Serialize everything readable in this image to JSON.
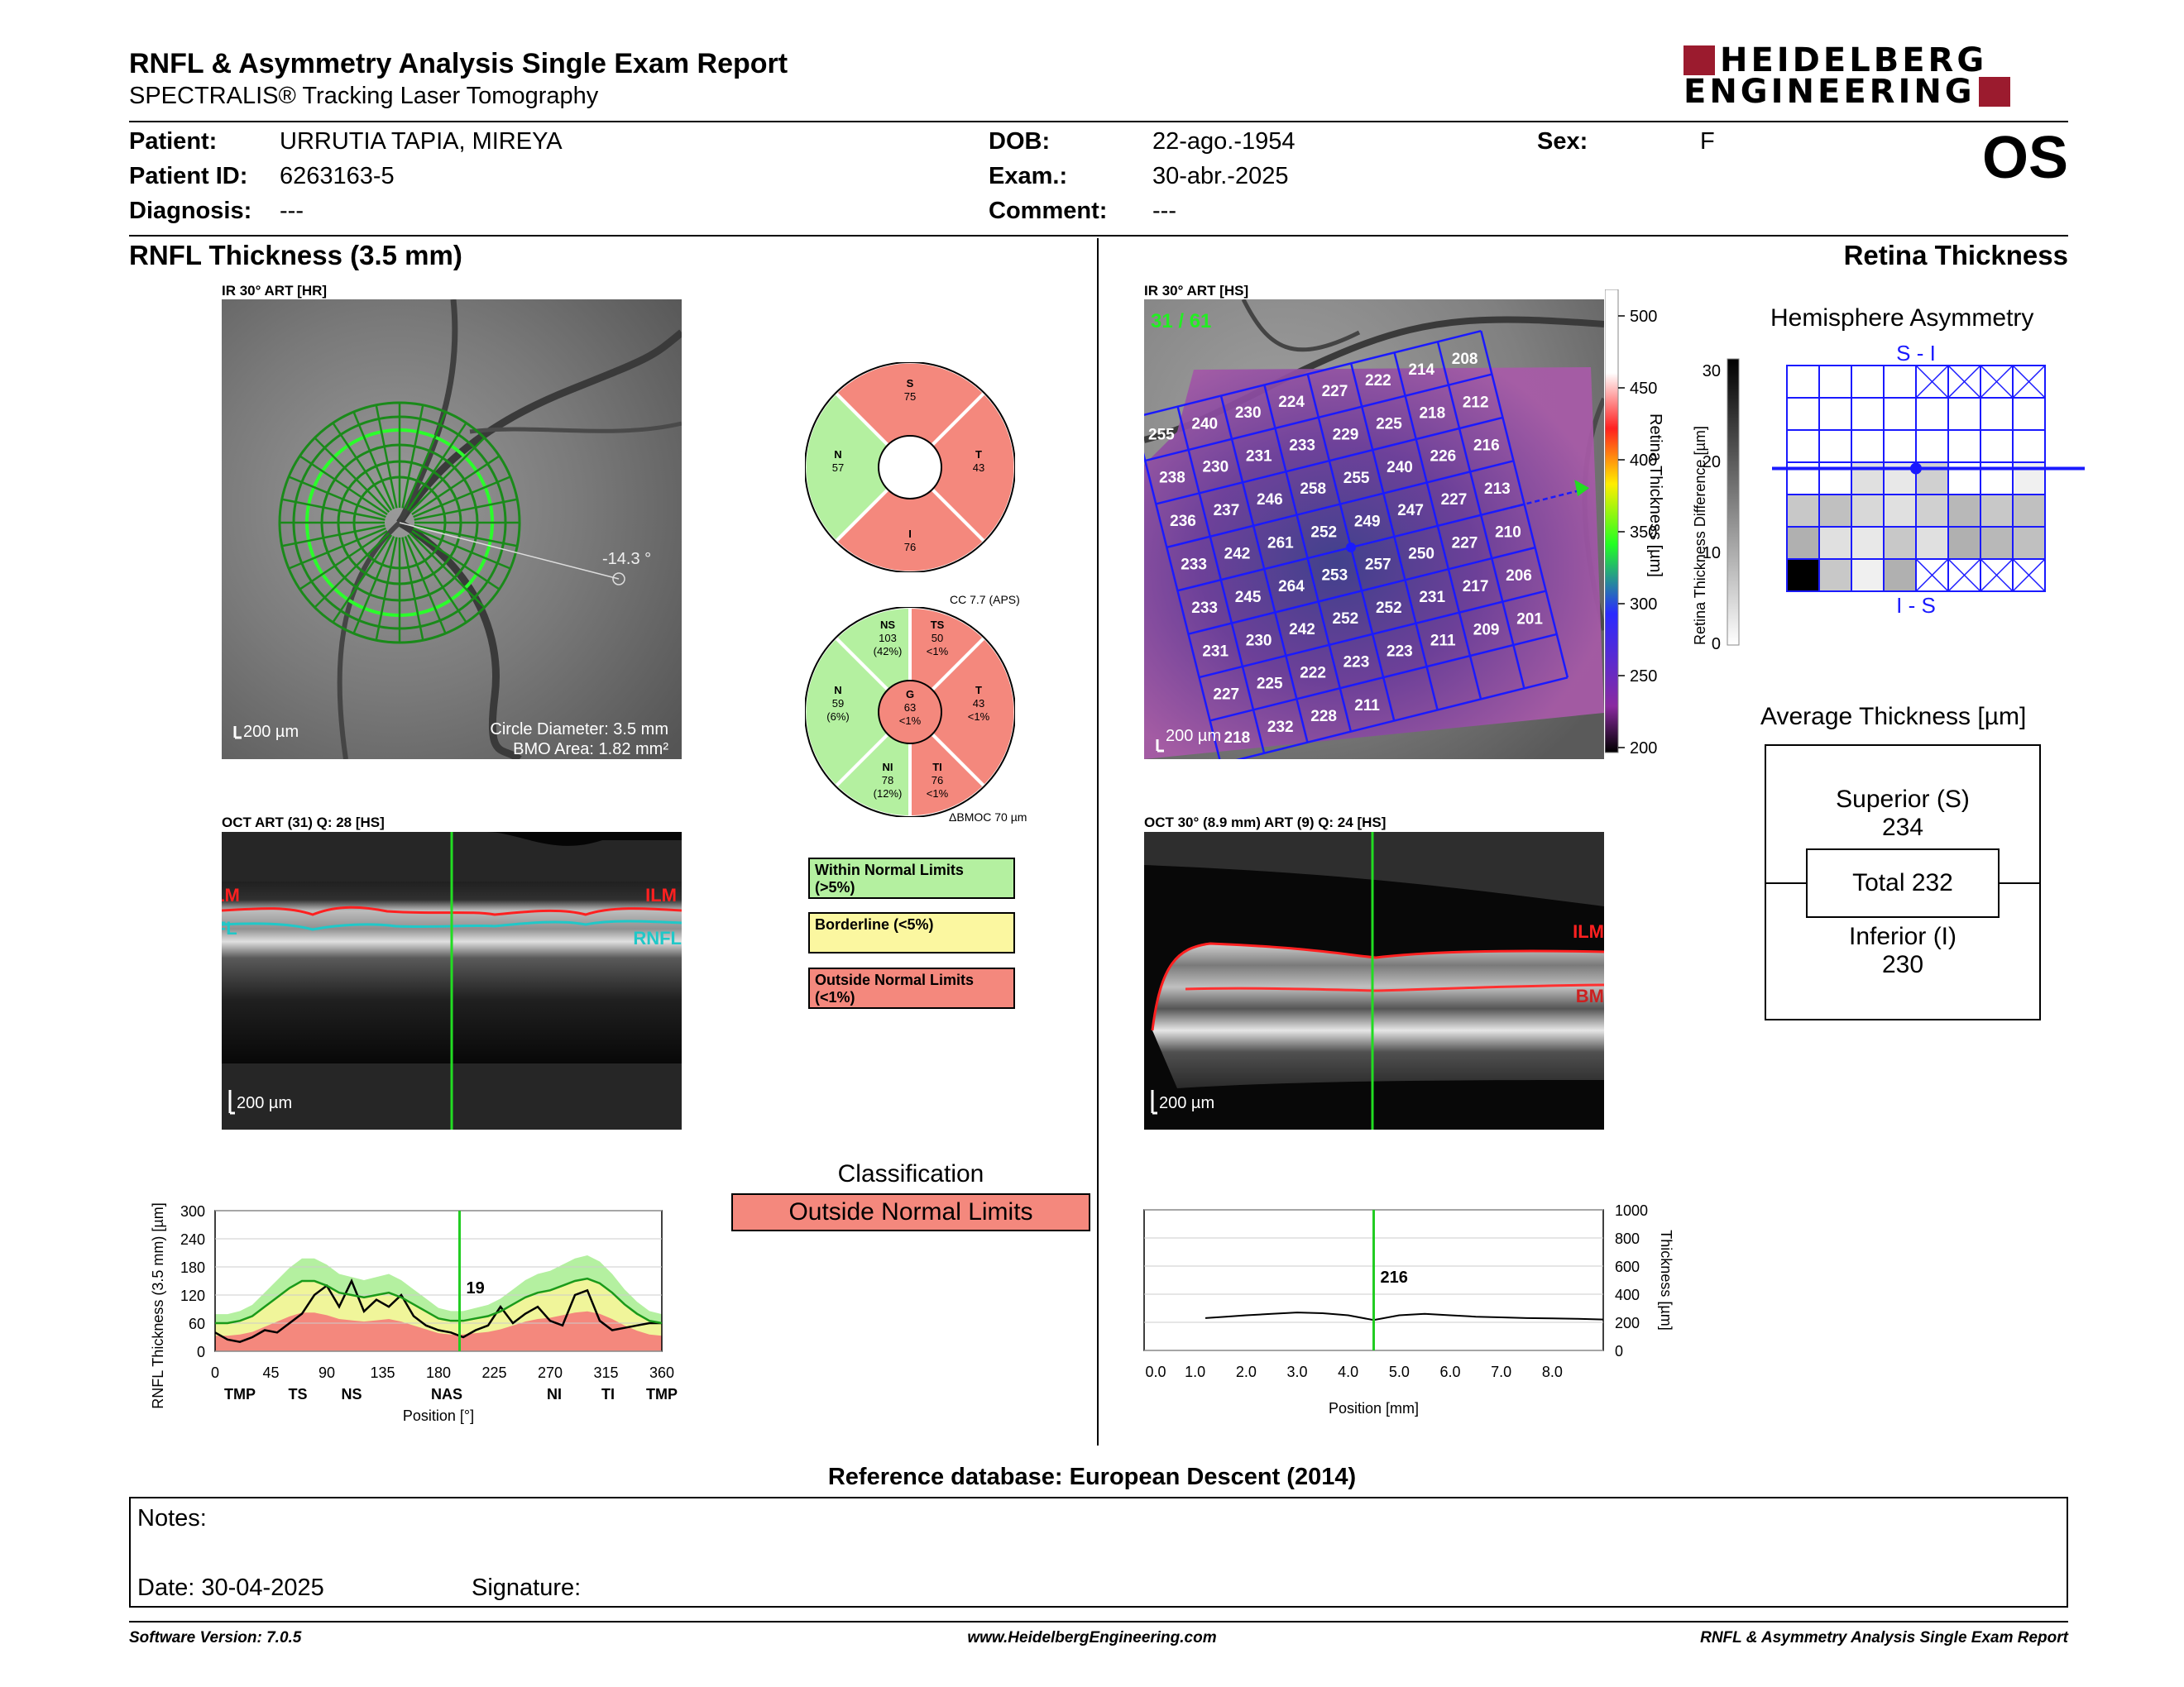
{
  "report": {
    "title": "RNFL & Asymmetry Analysis Single Exam Report",
    "subtitle": "SPECTRALIS® Tracking Laser Tomography",
    "logo_top": "HEIDELBERG",
    "logo_bottom": "ENGINEERING",
    "eye": "OS"
  },
  "patient": {
    "patient_label": "Patient:",
    "patient_value": "URRUTIA TAPIA, MIREYA",
    "id_label": "Patient ID:",
    "id_value": "6263163-5",
    "diag_label": "Diagnosis:",
    "diag_value": "---",
    "dob_label": "DOB:",
    "dob_value": "22-ago.-1954",
    "exam_label": "Exam.:",
    "exam_value": "30-abr.-2025",
    "comment_label": "Comment:",
    "comment_value": "---",
    "sex_label": "Sex:",
    "sex_value": "F"
  },
  "left": {
    "section_title": "RNFL Thickness (3.5 mm)",
    "ir_label": "IR 30° ART [HR]",
    "ir_scale": "200 µm",
    "ir_angle": "-14.3 °",
    "circle_diameter": "Circle Diameter: 3.5 mm",
    "bmo_area": "BMO Area: 1.82 mm²",
    "oct_label": "OCT ART (31) Q: 28 [HS]",
    "oct_scale": "200 µm",
    "oct_ilm_left": "ILM",
    "oct_ilm": "ILM",
    "oct_rnfl": "RNFL",
    "oct_rnfl_left": "RNFL"
  },
  "sectors_6": {
    "S": {
      "label": "S",
      "value": "75"
    },
    "N": {
      "label": "N",
      "value": "57"
    },
    "T": {
      "label": "T",
      "value": "43"
    },
    "I": {
      "label": "I",
      "value": "76"
    }
  },
  "sectors_g": {
    "cc": "CC 7.7 (APS)",
    "NS": {
      "label": "NS",
      "value": "103",
      "pct": "(42%)"
    },
    "TS": {
      "label": "TS",
      "value": "50",
      "pct": "<1%"
    },
    "N": {
      "label": "N",
      "value": "59",
      "pct": "(6%)"
    },
    "G": {
      "label": "G",
      "value": "63",
      "pct": "<1%"
    },
    "T": {
      "label": "T",
      "value": "43",
      "pct": "<1%"
    },
    "NI": {
      "label": "NI",
      "value": "78",
      "pct": "(12%)"
    },
    "TI": {
      "label": "TI",
      "value": "76",
      "pct": "<1%"
    },
    "bmo_delta": "ΔBMOC 70 µm"
  },
  "legend": {
    "within": "Within Normal Limits (>5%)",
    "within_l1": "Within Normal Limits",
    "within_l2": "(>5%)",
    "border": "Borderline (<5%)",
    "outside_l1": "Outside Normal Limits",
    "outside_l2": "(<1%)"
  },
  "classification": {
    "title": "Classification",
    "value": "Outside Normal Limits"
  },
  "rnfl_chart": {
    "ylabel": "RNFL Thickness (3.5 mm) [µm]",
    "xlabel": "Position [°]",
    "cursor_value": "19",
    "sectors": [
      "TMP",
      "TS",
      "NS",
      "NAS",
      "NI",
      "TI",
      "TMP"
    ]
  },
  "right": {
    "section_title": "Retina Thickness",
    "ir_label": "IR 30° ART [HS]",
    "counter": "31 / 61",
    "ir_scale": "200 µm",
    "colorbar_title": "Retina Thickness [µm]",
    "oct_label": "OCT 30° (8.9 mm) ART (9) Q: 24 [HS]",
    "oct_scale": "200 µm",
    "oct_ilm": "ILM",
    "oct_bm": "BM"
  },
  "grid_values": [
    [
      "255",
      "240",
      "230",
      "224",
      "227",
      "222",
      "214",
      "208"
    ],
    [
      "238",
      "230",
      "231",
      "233",
      "229",
      "225",
      "218",
      "212"
    ],
    [
      "236",
      "237",
      "246",
      "258",
      "255",
      "240",
      "226",
      "216"
    ],
    [
      "233",
      "242",
      "261",
      "252",
      "249",
      "247",
      "227",
      "213"
    ],
    [
      "233",
      "245",
      "264",
      "253",
      "257",
      "250",
      "227",
      "210"
    ],
    [
      "231",
      "230",
      "242",
      "252",
      "252",
      "231",
      "217",
      "206"
    ],
    [
      "227",
      "225",
      "222",
      "223",
      "223",
      "211",
      "209",
      "201"
    ],
    [
      "218",
      "232",
      "228",
      "211"
    ]
  ],
  "hemisphere": {
    "title": "Hemisphere Asymmetry",
    "top_label": "S - I",
    "bottom_label": "I - S",
    "ylabel": "Retina Thickness Difference [µm]"
  },
  "average": {
    "title": "Average Thickness [µm]",
    "superior_label": "Superior (S)",
    "superior_value": "234",
    "total": "Total 232",
    "inferior_label": "Inferior (I)",
    "inferior_value": "230"
  },
  "retina_chart": {
    "ylabel": "Thickness [µm]",
    "xlabel": "Position [mm]",
    "cursor_value": "216"
  },
  "footer": {
    "reference": "Reference database: European Descent (2014)",
    "notes_label": "Notes:",
    "date_label": "Date: 30-04-2025",
    "signature_label": "Signature:",
    "software": "Software Version: 7.0.5",
    "website": "www.HeidelbergEngineering.com",
    "report_name": "RNFL & Asymmetry Analysis Single Exam Report"
  },
  "chart_data": [
    {
      "type": "line",
      "title": "",
      "xlabel": "Position [°]",
      "ylabel": "RNFL Thickness (3.5 mm) [µm]",
      "xlim": [
        0,
        360
      ],
      "ylim": [
        0,
        300
      ],
      "x_ticks": [
        0,
        45,
        90,
        135,
        180,
        225,
        270,
        315,
        360
      ],
      "y_ticks": [
        0,
        60,
        120,
        180,
        240,
        300
      ],
      "x": [
        0,
        10,
        20,
        30,
        40,
        50,
        60,
        70,
        80,
        90,
        100,
        110,
        120,
        130,
        140,
        150,
        160,
        170,
        180,
        190,
        200,
        210,
        220,
        230,
        240,
        250,
        260,
        270,
        280,
        290,
        300,
        310,
        320,
        330,
        340,
        350,
        360
      ],
      "series": [
        {
          "name": "patient",
          "values": [
            40,
            25,
            20,
            30,
            45,
            40,
            60,
            80,
            120,
            140,
            95,
            150,
            85,
            110,
            95,
            120,
            75,
            55,
            45,
            40,
            30,
            45,
            55,
            95,
            60,
            80,
            95,
            65,
            55,
            120,
            130,
            65,
            45,
            50,
            55,
            60,
            60
          ]
        },
        {
          "name": "normal-mean",
          "values": [
            60,
            60,
            65,
            75,
            95,
            115,
            135,
            150,
            150,
            140,
            125,
            120,
            115,
            120,
            125,
            115,
            100,
            85,
            70,
            65,
            65,
            70,
            75,
            85,
            100,
            115,
            125,
            130,
            140,
            150,
            155,
            145,
            125,
            100,
            80,
            65,
            60
          ]
        }
      ],
      "cursor_x": 197,
      "cursor_label": "19"
    },
    {
      "type": "line",
      "title": "",
      "xlabel": "Position [mm]",
      "ylabel": "Thickness [µm]",
      "xlim": [
        0,
        9
      ],
      "ylim": [
        0,
        1000
      ],
      "x_ticks": [
        "0.0",
        "1.0",
        "2.0",
        "3.0",
        "4.0",
        "5.0",
        "6.0",
        "7.0",
        "8.0"
      ],
      "y_ticks": [
        0,
        200,
        400,
        600,
        800,
        1000
      ],
      "x": [
        1.2,
        1.6,
        2.0,
        2.5,
        3.0,
        3.5,
        4.0,
        4.5,
        5.0,
        5.5,
        6.0,
        6.5,
        7.0,
        7.5,
        8.0,
        8.5,
        9.0
      ],
      "series": [
        {
          "name": "retina",
          "values": [
            230,
            240,
            250,
            260,
            270,
            265,
            250,
            216,
            250,
            260,
            250,
            240,
            235,
            230,
            228,
            225,
            220
          ]
        }
      ],
      "cursor_x": 4.5,
      "cursor_label": "216"
    },
    {
      "type": "heatmap",
      "title": "Hemisphere Asymmetry",
      "ylabel": "Retina Thickness Difference [µm]",
      "colorbar_ticks": [
        0,
        10,
        20,
        30
      ]
    }
  ]
}
